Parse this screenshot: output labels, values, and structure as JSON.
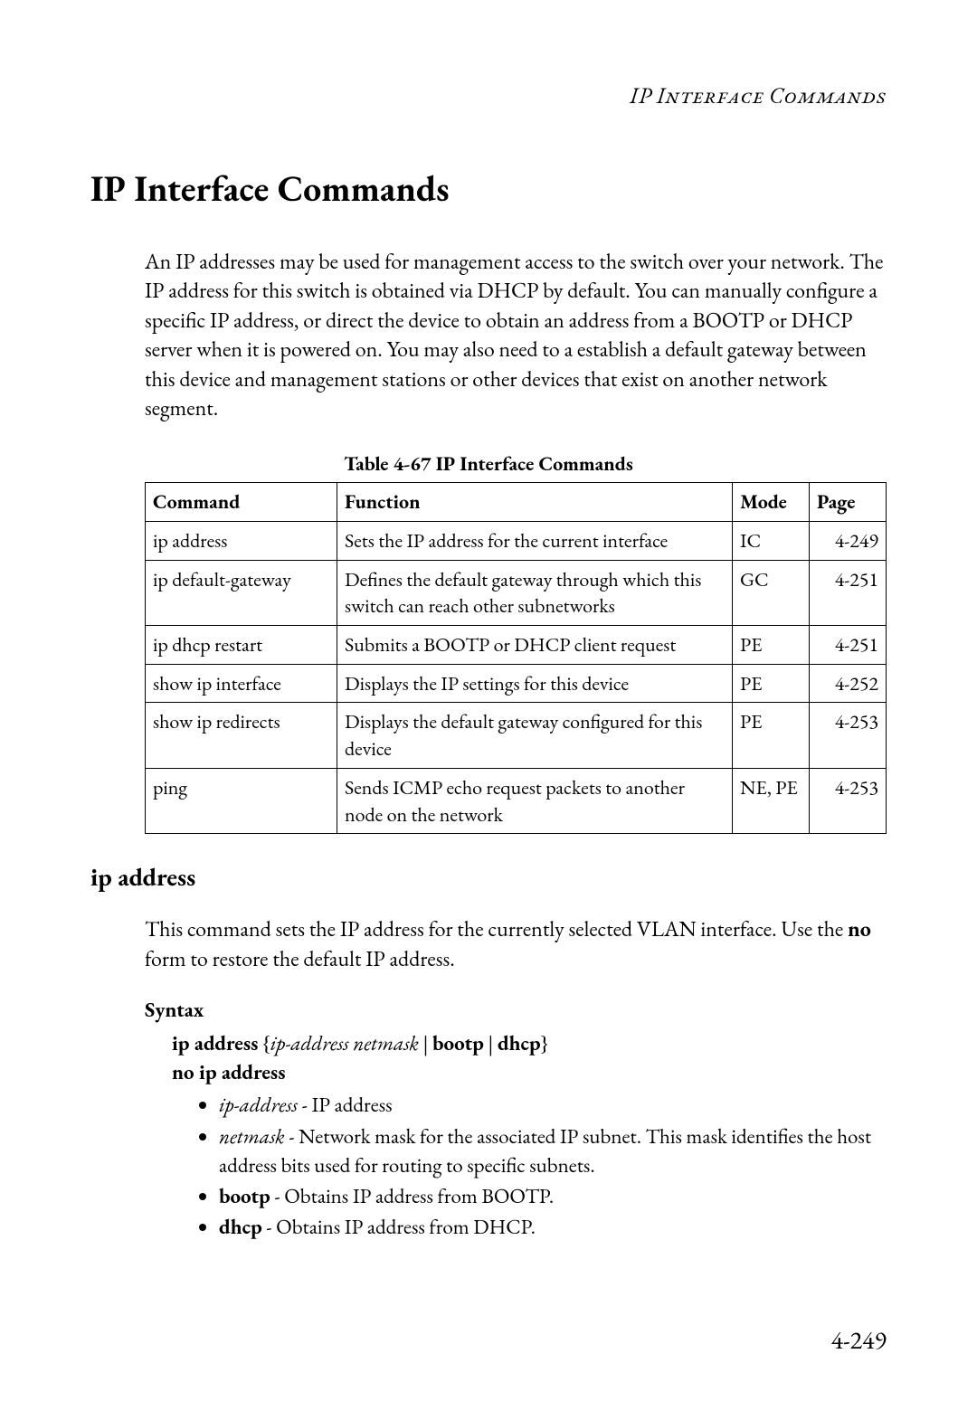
{
  "running_head": "IP Interface Commands",
  "title": "IP Interface Commands",
  "intro": "An IP addresses may be used for management access to the switch over your network. The IP address for this switch is obtained via DHCP by default. You can manually configure a specific IP address, or direct the device to obtain an address from a BOOTP or DHCP server when it is powered on. You may also need to a establish a default gateway between this device and management stations or other devices that exist on another network segment.",
  "table_caption": "Table 4-67  IP Interface Commands",
  "table": {
    "headers": {
      "c0": "Command",
      "c1": "Function",
      "c2": "Mode",
      "c3": "Page"
    },
    "rows": [
      {
        "cmd": "ip address",
        "func": "Sets the IP address for the current interface",
        "mode": "IC",
        "page": "4-249"
      },
      {
        "cmd": "ip default-gateway",
        "func": "Defines the default gateway through which this switch can reach other subnetworks",
        "mode": "GC",
        "page": "4-251"
      },
      {
        "cmd": "ip dhcp restart",
        "func": "Submits a BOOTP or DHCP client request",
        "mode": "PE",
        "page": "4-251"
      },
      {
        "cmd": "show ip interface",
        "func": "Displays the IP settings for this device",
        "mode": "PE",
        "page": "4-252"
      },
      {
        "cmd": "show ip redirects",
        "func": "Displays the default gateway configured for this device",
        "mode": "PE",
        "page": "4-253"
      },
      {
        "cmd": "ping",
        "func": "Sends ICMP echo request packets to another node on the network",
        "mode": "NE, PE",
        "page": "4-253"
      }
    ]
  },
  "subhead": "ip address",
  "subhead_desc_a": "This command sets the IP address for the currently selected VLAN interface. Use the ",
  "subhead_desc_bold": "no",
  "subhead_desc_b": " form to restore the default IP address.",
  "syntax_head": "Syntax",
  "syntax": {
    "line1_a": "ip address",
    "line1_b": " {",
    "line1_c": "ip-address netmask",
    "line1_d": " | ",
    "line1_e": "bootp",
    "line1_f": " | ",
    "line1_g": "dhcp",
    "line1_h": "}",
    "line2": "no ip address"
  },
  "bullets": {
    "b0_a": "ip-address",
    "b0_b": " - IP address",
    "b1_a": "netmask",
    "b1_b": " - Network mask for the associated IP subnet. This mask identifies the host address bits used for routing to specific subnets.",
    "b2_a": "bootp",
    "b2_b": " - Obtains IP address from BOOTP.",
    "b3_a": "dhcp",
    "b3_b": " - Obtains IP address from DHCP."
  },
  "page_number": "4-249"
}
